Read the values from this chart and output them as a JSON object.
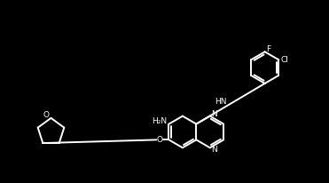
{
  "bg_color": "#000000",
  "line_color": "#ffffff",
  "line_width": 1.4,
  "font_color": "#ffffff",
  "font_size": 6.5,
  "figsize": [
    3.71,
    2.06
  ],
  "dpi": 100,
  "xlim": [
    0,
    10
  ],
  "ylim": [
    0,
    5.55
  ]
}
